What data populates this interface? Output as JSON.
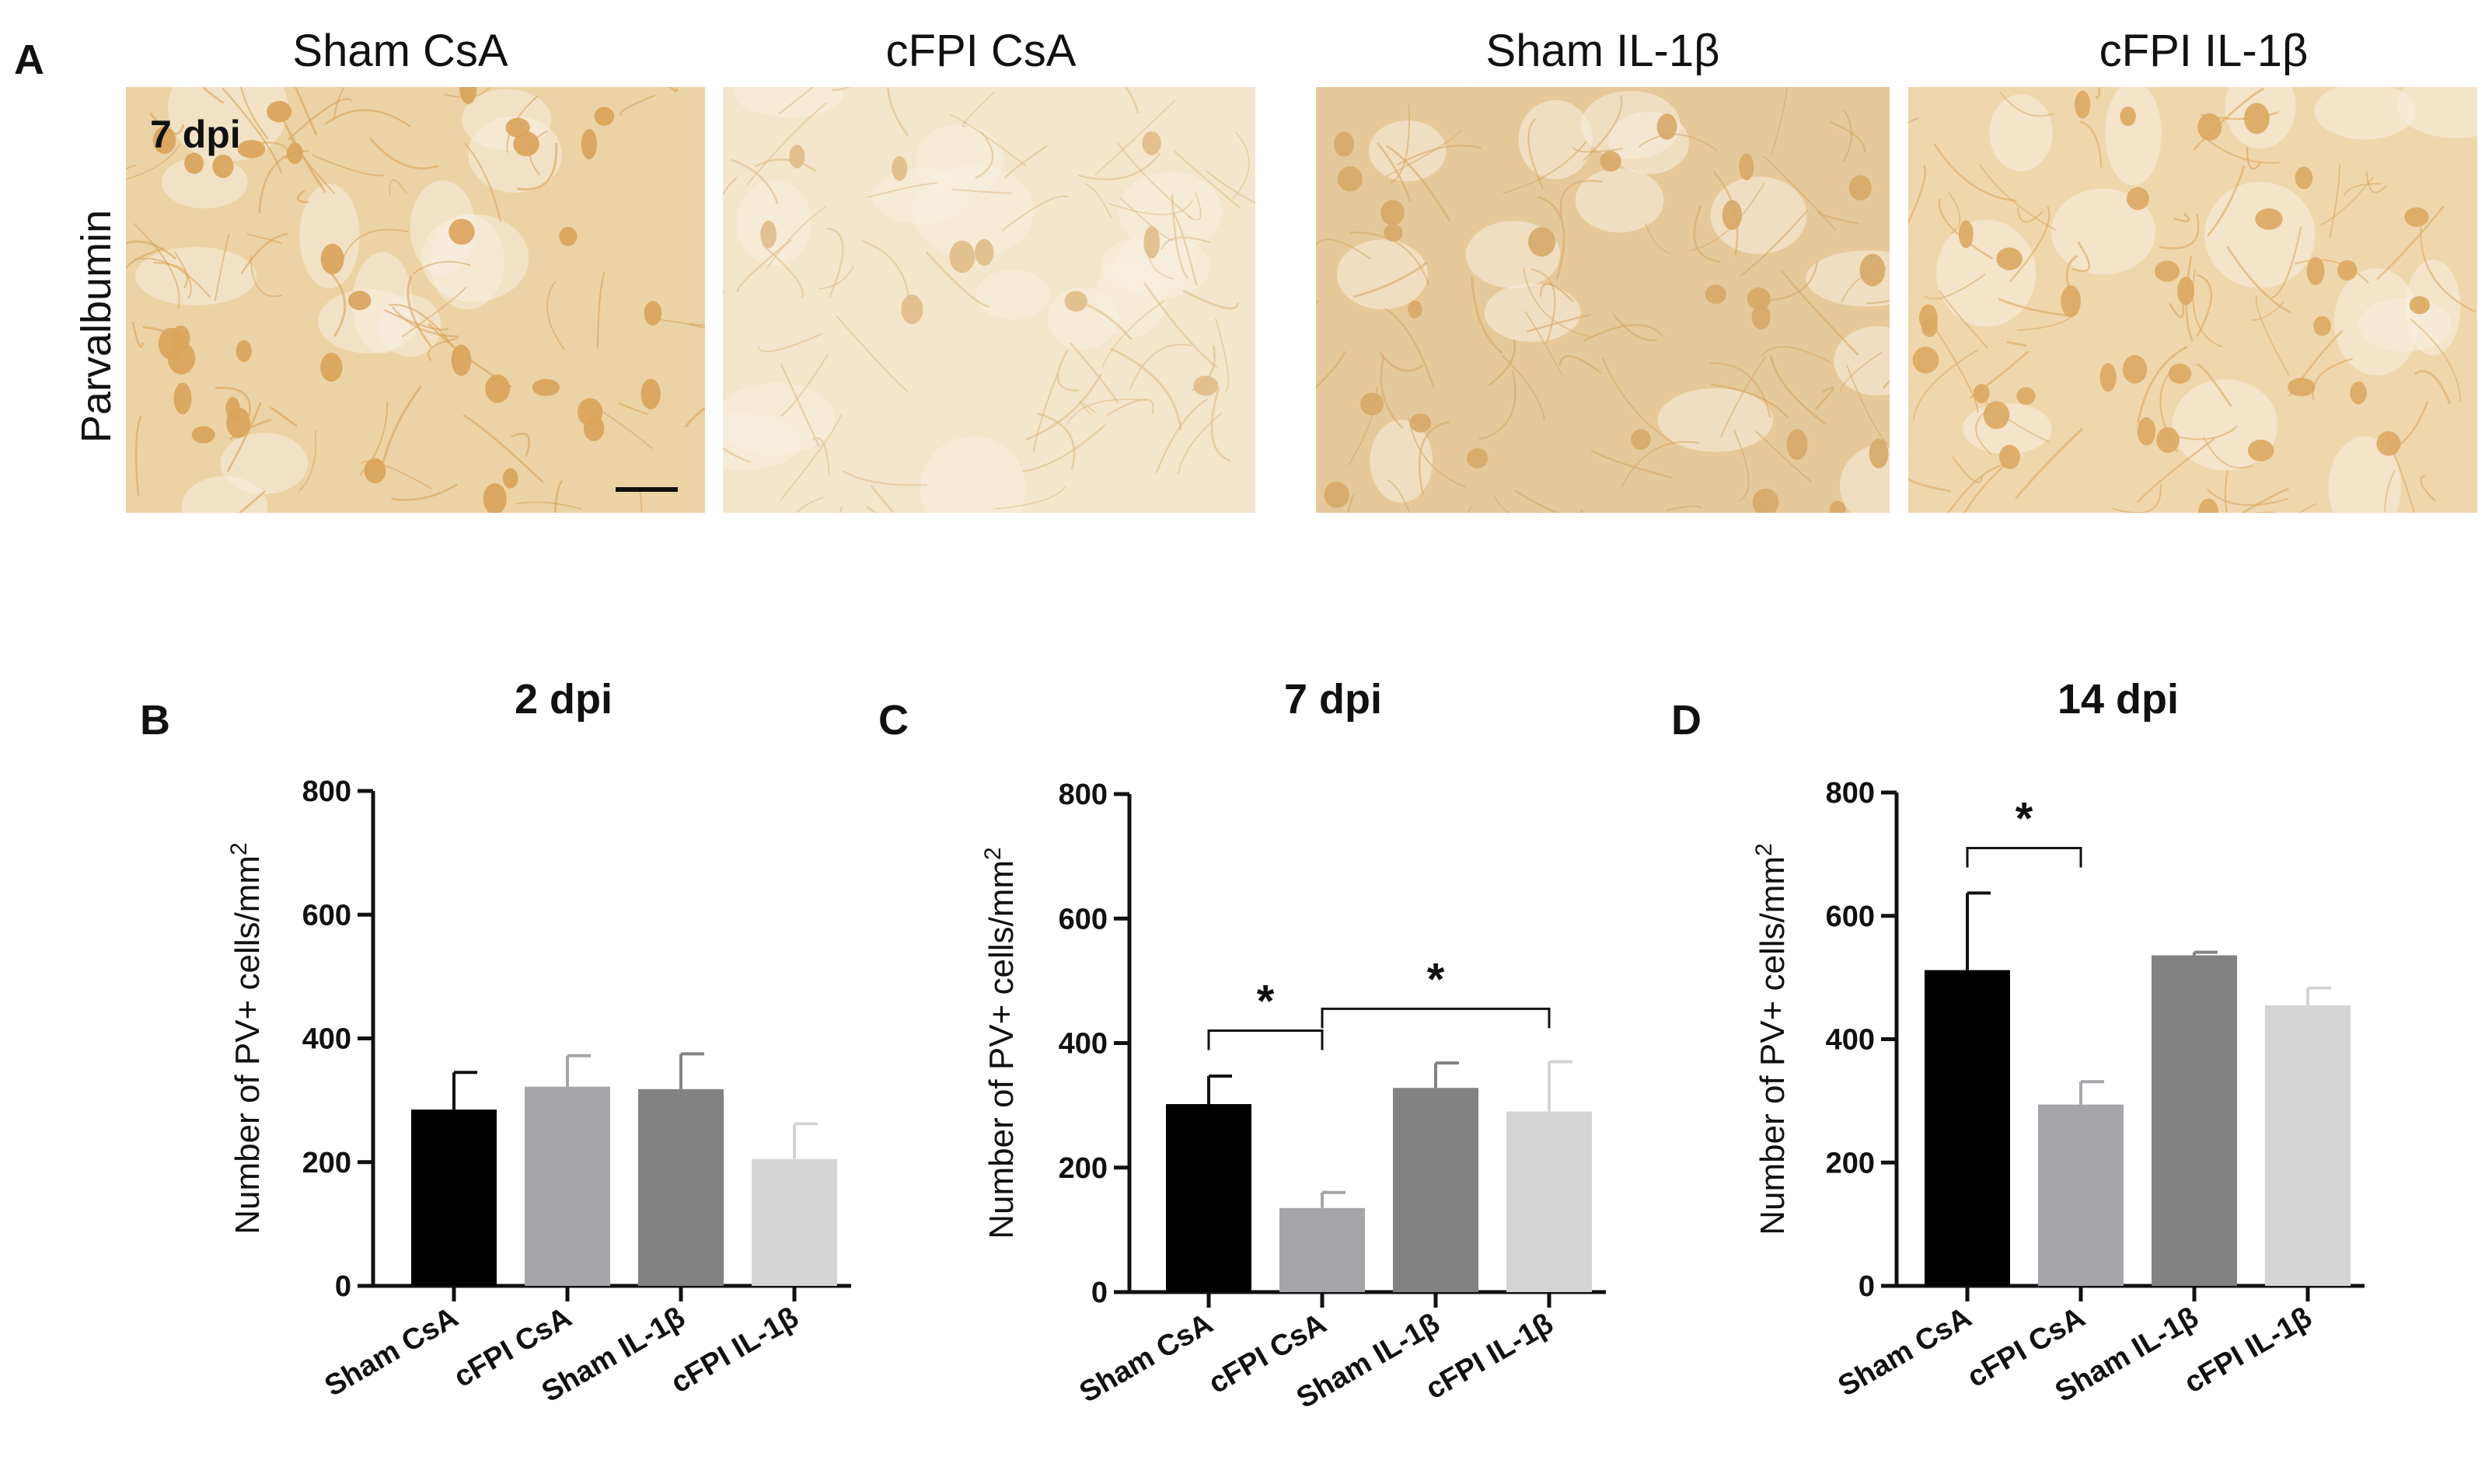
{
  "micrographs": {
    "label": "A",
    "row_label": "Parvalbumin",
    "inset_label": "7 dpi",
    "panels": [
      {
        "title": "Sham CsA",
        "tint": "#ecd3a5",
        "cell": "#d9a35a",
        "density": "high"
      },
      {
        "title": "cFPI CsA",
        "tint": "#f4e6cd",
        "cell": "#e0bd88",
        "density": "low"
      },
      {
        "title": "Sham IL-1β",
        "tint": "#e6c99a",
        "cell": "#d6a968",
        "density": "medium"
      },
      {
        "title": "cFPI  IL-1β",
        "tint": "#efd7ad",
        "cell": "#dba862",
        "density": "high"
      }
    ]
  },
  "chart_data": [
    {
      "type": "bar",
      "panel": "B",
      "title": "2 dpi",
      "ylabel": "Number of PV+ cells/mm",
      "ylabel_sup": "2",
      "ylim": [
        0,
        800
      ],
      "yticks": [
        0,
        200,
        400,
        600,
        800
      ],
      "categories": [
        "Sham CsA",
        "cFPI CsA",
        "Sham IL-1β",
        "cFPI IL-1β"
      ],
      "values": [
        285,
        322,
        318,
        205
      ],
      "errors": [
        60,
        50,
        57,
        57
      ],
      "colors": [
        "#000000",
        "#a5a5aa",
        "#828282",
        "#d4d4d4"
      ],
      "significance": []
    },
    {
      "type": "bar",
      "panel": "C",
      "title": "7 dpi",
      "ylabel": "Number of PV+ cells/mm",
      "ylabel_sup": "2",
      "ylim": [
        0,
        800
      ],
      "yticks": [
        0,
        200,
        400,
        600,
        800
      ],
      "categories": [
        "Sham CsA",
        "cFPI CsA",
        "Sham IL-1β",
        "cFPI IL-1β"
      ],
      "values": [
        302,
        135,
        328,
        290
      ],
      "errors": [
        45,
        25,
        40,
        80
      ],
      "colors": [
        "#000000",
        "#a5a5aa",
        "#828282",
        "#d4d4d4"
      ],
      "significance": [
        {
          "from": 0,
          "to": 1,
          "level": 420,
          "label": "*"
        },
        {
          "from": 1,
          "to": 3,
          "level": 455,
          "label": "*"
        }
      ]
    },
    {
      "type": "bar",
      "panel": "D",
      "title": "14 dpi",
      "ylabel": "Number of PV+ cells/mm",
      "ylabel_sup": "2",
      "ylim": [
        0,
        800
      ],
      "yticks": [
        0,
        200,
        400,
        600,
        800
      ],
      "categories": [
        "Sham CsA",
        "cFPI CsA",
        "Sham IL-1β",
        "cFPI IL-1β"
      ],
      "values": [
        512,
        294,
        536,
        455
      ],
      "errors": [
        125,
        37,
        5,
        28
      ],
      "colors": [
        "#000000",
        "#a5a5aa",
        "#828282",
        "#d4d4d4"
      ],
      "significance": [
        {
          "from": 0,
          "to": 1,
          "level": 710,
          "label": "*"
        }
      ]
    }
  ]
}
